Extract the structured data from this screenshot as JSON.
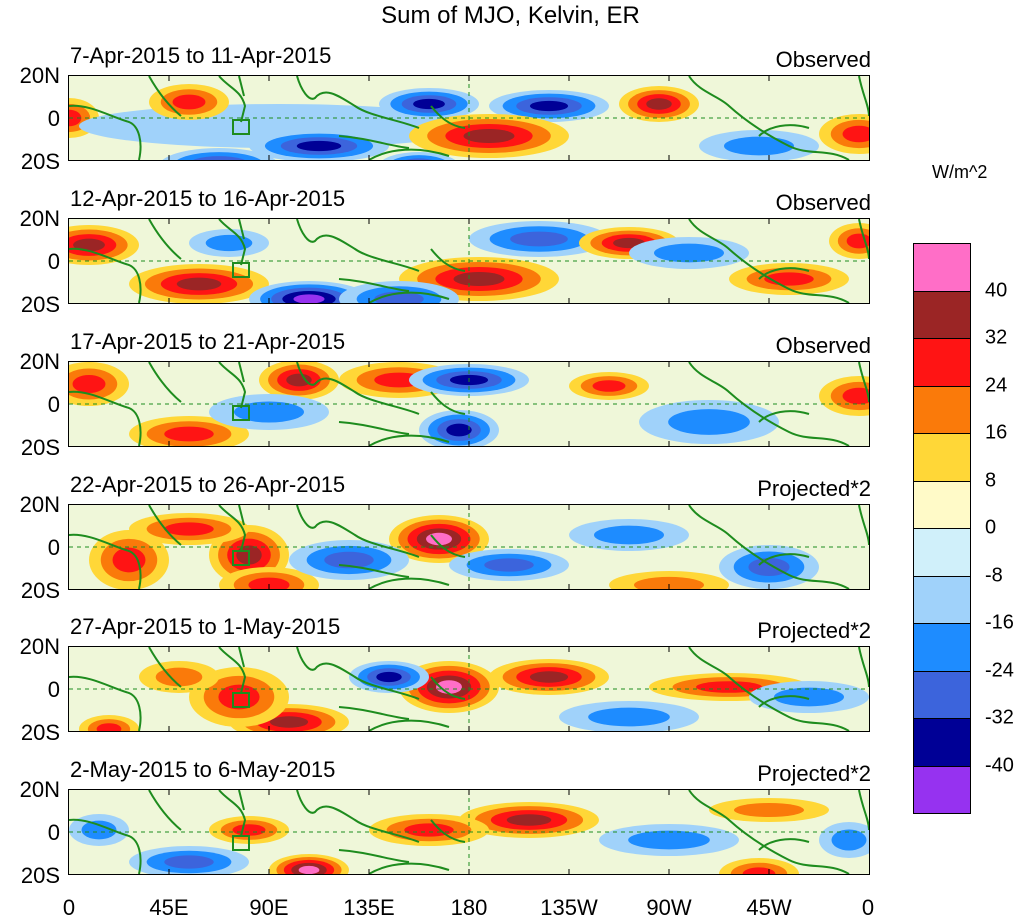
{
  "title": "Sum of MJO, Kelvin, ER",
  "units": "W/m^2",
  "panels": [
    {
      "range": "7-Apr-2015 to 11-Apr-2015",
      "kind": "Observed"
    },
    {
      "range": "12-Apr-2015 to 16-Apr-2015",
      "kind": "Observed"
    },
    {
      "range": "17-Apr-2015 to 21-Apr-2015",
      "kind": "Observed"
    },
    {
      "range": "22-Apr-2015 to 26-Apr-2015",
      "kind": "Projected*2"
    },
    {
      "range": "27-Apr-2015 to 1-May-2015",
      "kind": "Projected*2"
    },
    {
      "range": "2-May-2015 to 6-May-2015",
      "kind": "Projected*2"
    }
  ],
  "lat_labels": [
    "20N",
    "0",
    "20S"
  ],
  "lon_labels": [
    "0",
    "45E",
    "90E",
    "135E",
    "180",
    "135W",
    "90W",
    "45W",
    "0"
  ],
  "colorbar": {
    "colors": [
      "#ff6ec7",
      "#9b2525",
      "#ff1414",
      "#fa7a0a",
      "#ffd737",
      "#fffac8",
      "#d0f0fa",
      "#a0d2fa",
      "#1e8cff",
      "#3c64dc",
      "#000096",
      "#9632f0"
    ],
    "labels": [
      "40",
      "32",
      "24",
      "16",
      "8",
      "0",
      "-8",
      "-16",
      "-24",
      "-32",
      "-40"
    ]
  }
}
